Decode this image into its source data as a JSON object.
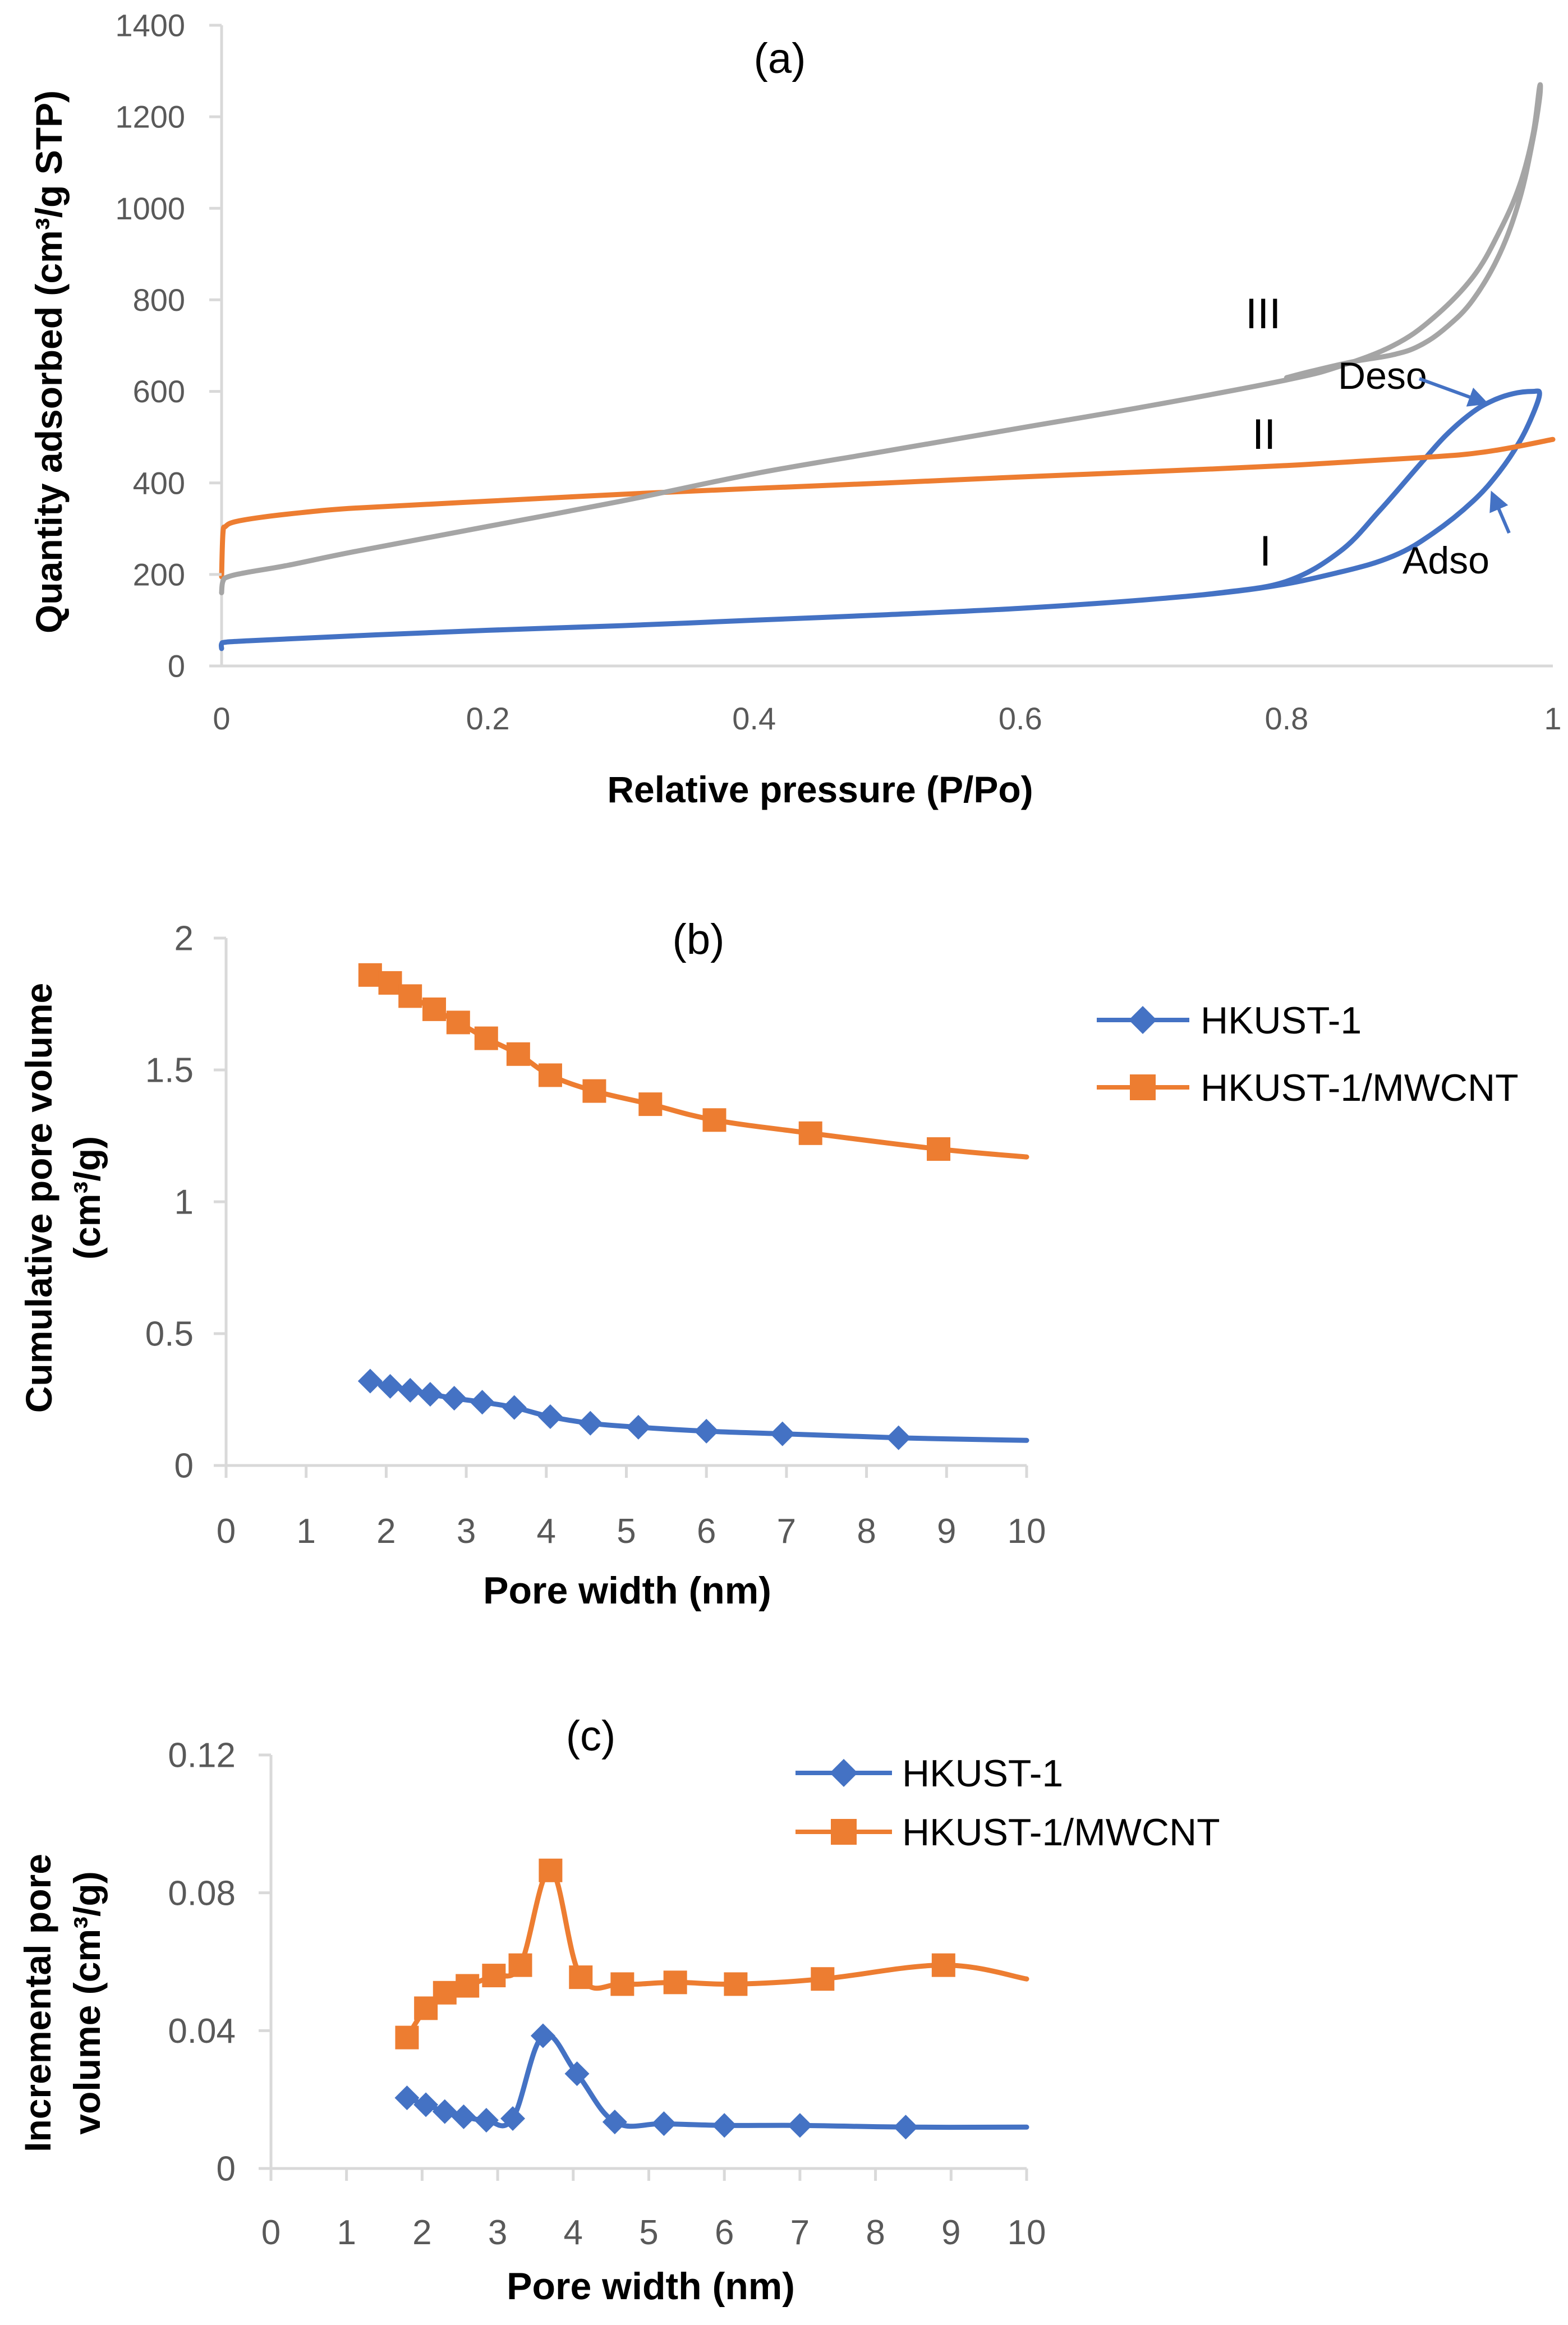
{
  "colors": {
    "blue": "#4472C4",
    "orange": "#ED7D31",
    "gray": "#A5A5A5",
    "axis": "#D9D9D9",
    "text": "#000000",
    "tick_text": "#595959"
  },
  "chart_data": [
    {
      "id": "a",
      "type": "line",
      "panel_label": "(a)",
      "xlabel": "Relative pressure (P/Po)",
      "ylabel": "Quantity adsorbed  (cm³/g STP)",
      "xlim": [
        0,
        1
      ],
      "ylim": [
        0,
        1400
      ],
      "xticks": [
        0,
        0.2,
        0.4,
        0.6,
        0.8,
        1
      ],
      "xtick_labels": [
        "0",
        "0.2",
        "0.4",
        "0.6",
        "0.8",
        "1"
      ],
      "yticks": [
        0,
        200,
        400,
        600,
        800,
        1000,
        1200,
        1400
      ],
      "ytick_labels": [
        "0",
        "200",
        "400",
        "600",
        "800",
        "1000",
        "1200",
        "1400"
      ],
      "series": [
        {
          "name": "I",
          "label": "I",
          "color": "blue",
          "x": [
            0.0,
            0.0,
            0.003,
            0.02,
            0.1,
            0.2,
            0.3,
            0.4,
            0.5,
            0.6,
            0.7,
            0.78,
            0.84,
            0.88,
            0.91,
            0.94,
            0.96,
            0.975,
            0.985,
            0.99,
            0.985,
            0.97,
            0.955,
            0.94,
            0.92,
            0.9,
            0.87,
            0.84,
            0.8,
            0.75,
            0.7
          ],
          "y": [
            38,
            48,
            52,
            55,
            66,
            78,
            88,
            100,
            112,
            126,
            146,
            170,
            205,
            240,
            290,
            360,
            425,
            490,
            550,
            595,
            600,
            595,
            580,
            555,
            505,
            440,
            340,
            250,
            185,
            160,
            146
          ]
        },
        {
          "name": "II",
          "label": "II",
          "color": "orange",
          "x": [
            0.0,
            0.001,
            0.003,
            0.01,
            0.03,
            0.06,
            0.1,
            0.2,
            0.3,
            0.4,
            0.5,
            0.6,
            0.7,
            0.8,
            0.9,
            0.95,
            1.0
          ],
          "y": [
            195,
            290,
            305,
            315,
            325,
            335,
            345,
            360,
            375,
            388,
            400,
            413,
            425,
            438,
            455,
            468,
            495
          ]
        },
        {
          "name": "III",
          "label": "III",
          "color": "gray",
          "x": [
            0.0,
            0.001,
            0.005,
            0.02,
            0.05,
            0.1,
            0.2,
            0.3,
            0.4,
            0.5,
            0.6,
            0.7,
            0.8,
            0.84,
            0.88,
            0.91,
            0.94,
            0.96,
            0.975,
            0.985,
            0.99,
            0.99,
            0.985,
            0.975,
            0.96,
            0.94,
            0.92,
            0.9,
            0.88,
            0.85,
            0.82,
            0.8
          ],
          "y": [
            160,
            185,
            195,
            205,
            220,
            250,
            305,
            360,
            420,
            470,
            520,
            570,
            625,
            655,
            700,
            760,
            850,
            950,
            1050,
            1160,
            1265,
            1240,
            1150,
            1020,
            900,
            800,
            740,
            700,
            680,
            665,
            645,
            630
          ]
        }
      ],
      "annotations": [
        {
          "text": "Deso",
          "target": [
            0.965,
            590
          ]
        },
        {
          "text": "Adso",
          "target": [
            0.962,
            390
          ]
        }
      ]
    },
    {
      "id": "b",
      "type": "line",
      "panel_label": "(b)",
      "xlabel": "Pore width (nm)",
      "ylabel_lines": [
        "Cumulative  pore volume",
        "(cm³/g)"
      ],
      "xlim": [
        0,
        10
      ],
      "ylim": [
        0,
        2
      ],
      "xticks": [
        0,
        1,
        2,
        3,
        4,
        5,
        6,
        7,
        8,
        9,
        10
      ],
      "xtick_labels": [
        "0",
        "1",
        "2",
        "3",
        "4",
        "5",
        "6",
        "7",
        "8",
        "9",
        "10"
      ],
      "yticks": [
        0,
        0.5,
        1,
        1.5,
        2
      ],
      "ytick_labels": [
        "0",
        "0.5",
        "1",
        "1.5",
        "2"
      ],
      "legend": {
        "placement": "right",
        "entries": [
          "HKUST-1",
          "HKUST-1/MWCNT"
        ]
      },
      "series": [
        {
          "name": "HKUST-1",
          "color": "blue",
          "marker": "diamond",
          "x": [
            1.8,
            2.05,
            2.3,
            2.55,
            2.85,
            3.2,
            3.6,
            4.05,
            4.55,
            5.15,
            6.0,
            6.95,
            8.4
          ],
          "y": [
            0.32,
            0.3,
            0.285,
            0.27,
            0.255,
            0.24,
            0.22,
            0.185,
            0.16,
            0.145,
            0.13,
            0.12,
            0.105
          ],
          "curve_x": [
            1.8,
            2.05,
            2.3,
            2.55,
            2.85,
            3.2,
            3.6,
            4.05,
            4.55,
            5.15,
            6.0,
            6.95,
            8.4,
            10.0
          ],
          "curve_y": [
            0.32,
            0.3,
            0.285,
            0.27,
            0.255,
            0.24,
            0.22,
            0.185,
            0.16,
            0.145,
            0.13,
            0.12,
            0.105,
            0.095
          ]
        },
        {
          "name": "HKUST-1/MWCNT",
          "color": "orange",
          "marker": "square",
          "x": [
            1.8,
            2.05,
            2.3,
            2.6,
            2.9,
            3.25,
            3.65,
            4.05,
            4.6,
            5.3,
            6.1,
            7.3,
            8.9
          ],
          "y": [
            1.86,
            1.83,
            1.78,
            1.73,
            1.68,
            1.62,
            1.56,
            1.48,
            1.42,
            1.37,
            1.31,
            1.26,
            1.2
          ],
          "curve_x": [
            1.8,
            2.05,
            2.3,
            2.6,
            2.9,
            3.25,
            3.65,
            4.05,
            4.6,
            5.3,
            6.1,
            7.3,
            8.9,
            10.0
          ],
          "curve_y": [
            1.86,
            1.83,
            1.78,
            1.73,
            1.68,
            1.62,
            1.56,
            1.48,
            1.42,
            1.37,
            1.31,
            1.26,
            1.2,
            1.17
          ]
        }
      ]
    },
    {
      "id": "c",
      "type": "line",
      "panel_label": "(c)",
      "xlabel": "Pore width  (nm)",
      "ylabel_lines": [
        "Incremental pore",
        "volume (cm³/g)"
      ],
      "xlim": [
        0,
        10
      ],
      "ylim": [
        0,
        0.12
      ],
      "xticks": [
        0,
        1,
        2,
        3,
        4,
        5,
        6,
        7,
        8,
        9,
        10
      ],
      "xtick_labels": [
        "0",
        "1",
        "2",
        "3",
        "4",
        "5",
        "6",
        "7",
        "8",
        "9",
        "10"
      ],
      "yticks": [
        0,
        0.04,
        0.08,
        0.12
      ],
      "ytick_labels": [
        "0",
        "0.04",
        "0.08",
        "0.12"
      ],
      "legend": {
        "placement": "top-right",
        "entries": [
          "HKUST-1",
          "HKUST-1/MWCNT"
        ]
      },
      "series": [
        {
          "name": "HKUST-1",
          "color": "blue",
          "marker": "diamond",
          "x": [
            1.8,
            2.05,
            2.3,
            2.55,
            2.85,
            3.2,
            3.6,
            4.05,
            4.55,
            5.2,
            6.0,
            7.0,
            8.4
          ],
          "y": [
            0.0205,
            0.0185,
            0.0165,
            0.015,
            0.014,
            0.0145,
            0.0385,
            0.0275,
            0.0135,
            0.013,
            0.0125,
            0.0125,
            0.012
          ],
          "curve_x": [
            1.8,
            2.05,
            2.3,
            2.55,
            2.85,
            3.2,
            3.6,
            4.05,
            4.55,
            5.2,
            6.0,
            7.0,
            8.4,
            10.0
          ],
          "curve_y": [
            0.0205,
            0.0185,
            0.0165,
            0.015,
            0.014,
            0.0145,
            0.0385,
            0.0275,
            0.0135,
            0.013,
            0.0125,
            0.0125,
            0.012,
            0.012
          ]
        },
        {
          "name": "HKUST-1/MWCNT",
          "color": "orange",
          "marker": "square",
          "x": [
            1.8,
            2.05,
            2.3,
            2.6,
            2.95,
            3.3,
            3.7,
            4.1,
            4.65,
            5.35,
            6.15,
            7.3,
            8.9
          ],
          "y": [
            0.038,
            0.0465,
            0.051,
            0.053,
            0.056,
            0.059,
            0.0865,
            0.0555,
            0.0535,
            0.054,
            0.0535,
            0.055,
            0.059
          ],
          "curve_x": [
            1.8,
            2.05,
            2.3,
            2.6,
            2.95,
            3.3,
            3.7,
            4.1,
            4.65,
            5.35,
            6.15,
            7.3,
            8.9,
            10.0
          ],
          "curve_y": [
            0.038,
            0.0465,
            0.051,
            0.053,
            0.056,
            0.059,
            0.0865,
            0.0555,
            0.0535,
            0.054,
            0.0535,
            0.055,
            0.059,
            0.055
          ]
        }
      ]
    }
  ]
}
